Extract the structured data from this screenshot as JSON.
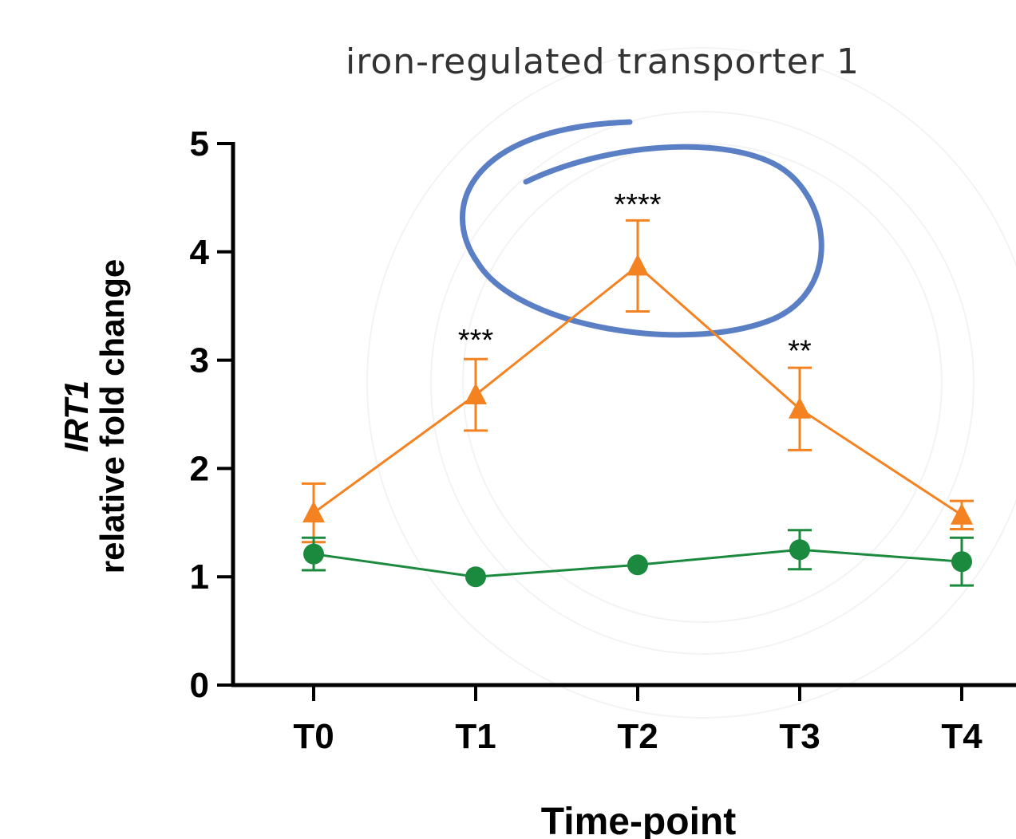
{
  "chart_data": {
    "type": "line",
    "title": "iron-regulated transporter 1",
    "xlabel": "Time-point",
    "ylabel_gene": "IRT1",
    "ylabel": "relative fold change",
    "categories": [
      "T0",
      "T1",
      "T2",
      "T3",
      "T4"
    ],
    "ylim": [
      0,
      5
    ],
    "yticks": [
      0,
      1,
      2,
      3,
      4,
      5
    ],
    "grid": false,
    "series": [
      {
        "marker": "triangle",
        "color": "#F58220",
        "values": [
          1.59,
          2.68,
          3.87,
          2.55,
          1.57
        ],
        "errors": [
          0.27,
          0.33,
          0.42,
          0.38,
          0.13
        ]
      },
      {
        "marker": "circle",
        "color": "#1B8A3E",
        "values": [
          1.21,
          1.0,
          1.11,
          1.25,
          1.14
        ],
        "errors": [
          0.15,
          0.0,
          0.0,
          0.18,
          0.22
        ]
      }
    ],
    "annotations": [
      {
        "category": "T1",
        "text": "***",
        "y": 3.3
      },
      {
        "category": "T2",
        "text": "****",
        "y": 4.55
      },
      {
        "category": "T3",
        "text": "**",
        "y": 3.2
      }
    ],
    "highlight": {
      "category": "T2",
      "color": "#5B7FC4"
    }
  }
}
